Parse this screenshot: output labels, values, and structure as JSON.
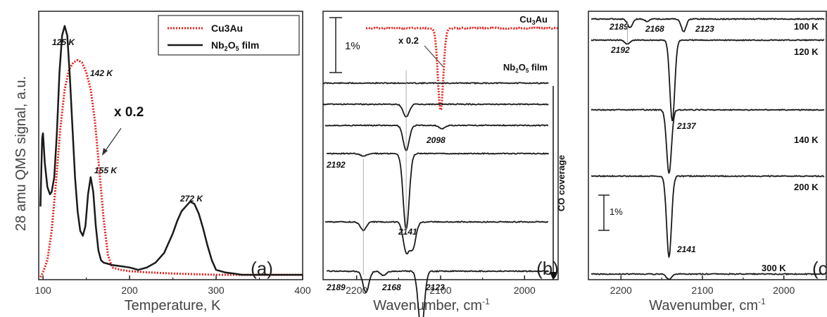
{
  "chart_data": [
    {
      "panel": "(a)",
      "type": "line",
      "xlabel": "Temperature, K",
      "ylabel": "28 amu QMS signal, a.u.",
      "xlim": [
        95,
        400
      ],
      "xticks": [
        100,
        200,
        300,
        400
      ],
      "ylim": [
        0,
        1.1
      ],
      "legend": "top-right",
      "series": [
        {
          "name": "Cu3Au",
          "style": "dotted",
          "color": "#e8201c",
          "x": [
            97,
            100,
            105,
            110,
            115,
            120,
            125,
            130,
            135,
            140,
            145,
            150,
            155,
            160,
            165,
            170,
            175,
            180,
            190,
            200,
            220,
            250,
            300,
            350,
            400
          ],
          "y": [
            0.01,
            0.03,
            0.08,
            0.2,
            0.4,
            0.62,
            0.78,
            0.86,
            0.89,
            0.9,
            0.89,
            0.85,
            0.78,
            0.65,
            0.45,
            0.25,
            0.1,
            0.05,
            0.04,
            0.035,
            0.03,
            0.025,
            0.02,
            0.02,
            0.02
          ]
        },
        {
          "name": "Nb2O5 film",
          "style": "solid",
          "color": "#1a1a1a",
          "x": [
            97,
            98,
            99,
            100,
            102,
            105,
            108,
            110,
            113,
            116,
            119,
            122,
            125,
            128,
            131,
            134,
            137,
            140,
            143,
            146,
            149,
            152,
            155,
            158,
            161,
            164,
            167,
            170,
            175,
            180,
            190,
            200,
            210,
            220,
            230,
            240,
            250,
            255,
            260,
            265,
            270,
            275,
            280,
            285,
            290,
            295,
            300,
            310,
            320,
            330,
            340,
            350,
            370,
            400
          ],
          "y": [
            0.3,
            0.45,
            0.58,
            0.6,
            0.48,
            0.38,
            0.35,
            0.36,
            0.42,
            0.6,
            0.85,
            1.0,
            1.04,
            1.0,
            0.83,
            0.62,
            0.42,
            0.28,
            0.2,
            0.18,
            0.22,
            0.35,
            0.42,
            0.36,
            0.22,
            0.12,
            0.08,
            0.07,
            0.065,
            0.06,
            0.055,
            0.05,
            0.04,
            0.05,
            0.07,
            0.11,
            0.19,
            0.24,
            0.28,
            0.3,
            0.32,
            0.31,
            0.27,
            0.21,
            0.14,
            0.08,
            0.04,
            0.03,
            0.025,
            0.02,
            0.02,
            0.02,
            0.02,
            0.02
          ]
        }
      ],
      "annotations": [
        "125 K",
        "142 K",
        "155 K",
        "272 K",
        "x 0.2"
      ]
    },
    {
      "panel": "(b)",
      "type": "line",
      "xlabel": "Wavenumber, cm",
      "xlabel_sup": "-1",
      "xlim": [
        2240,
        1960
      ],
      "xticks": [
        2200,
        2100,
        2000
      ],
      "scale_bar": "1%",
      "series_labels": [
        "Cu3Au",
        "Nb2O5 film"
      ],
      "arrow_label": "CO coverage",
      "multiplier_label": "x 0.2",
      "annotations": [
        "2098",
        "2192",
        "2141",
        "2189",
        "2168",
        "2123"
      ],
      "top_peak": {
        "center": 2100,
        "depth": 0.9
      },
      "spectra_peaks": [
        [],
        [
          {
            "c": 2141,
            "d": 0.15
          }
        ],
        [
          {
            "c": 2141,
            "d": 0.3
          },
          {
            "c": 2098,
            "d": 0.04
          }
        ],
        [
          {
            "c": 2141,
            "d": 0.9
          },
          {
            "c": 2192,
            "d": 0.03
          }
        ],
        [
          {
            "c": 2141,
            "d": 0.35
          },
          {
            "c": 2133,
            "d": 0.3
          },
          {
            "c": 2192,
            "d": 0.1
          }
        ],
        [
          {
            "c": 2123,
            "d": 0.7
          },
          {
            "c": 2189,
            "d": 0.25
          },
          {
            "c": 2168,
            "d": 0.05
          }
        ]
      ]
    },
    {
      "panel": "(c)",
      "type": "line",
      "xlabel": "Wavenumber, cm",
      "xlabel_sup": "-1",
      "xlim": [
        2240,
        1960
      ],
      "xticks": [
        2200,
        2100,
        2000
      ],
      "scale_bar": "1%",
      "series_labels": [
        "100 K",
        "120 K",
        "140 K",
        "200 K",
        "300 K"
      ],
      "annotations": [
        "2189",
        "2168",
        "2123",
        "2192",
        "2137",
        "2141"
      ],
      "spectra_peaks": [
        [
          {
            "c": 2189,
            "d": 0.3
          },
          {
            "c": 2168,
            "d": 0.08
          },
          {
            "c": 2123,
            "d": 0.45
          }
        ],
        [
          {
            "c": 2137,
            "d": 1.0
          },
          {
            "c": 2192,
            "d": 0.05
          }
        ],
        [
          {
            "c": 2141,
            "d": 1.0
          }
        ],
        [
          {
            "c": 2141,
            "d": 1.0
          }
        ],
        [
          {
            "c": 2141,
            "d": 0.2
          }
        ]
      ]
    }
  ],
  "panel_labels": [
    "(a)",
    "(b)",
    "(c)"
  ]
}
